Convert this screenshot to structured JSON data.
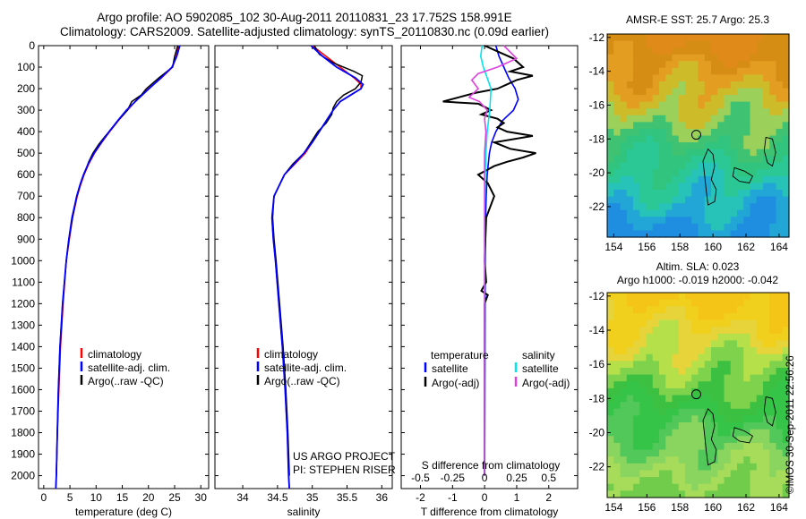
{
  "header": {
    "title_line1": "Argo profile: AO 5902085_102 30-Aug-2011 20110831_23 17.752S 158.991E",
    "title_line2": "Climatology: CARS2009. Satellite-adjusted climatology: synTS_20110830.nc (0.09d earlier)"
  },
  "stamp": "©IMOS 30-Sep-2011 22:56:26",
  "depth_axis": {
    "ticks": [
      0,
      100,
      200,
      300,
      400,
      500,
      600,
      700,
      800,
      900,
      1000,
      1100,
      1200,
      1300,
      1400,
      1500,
      1600,
      1700,
      1800,
      1900,
      2000
    ],
    "range": [
      0,
      2060
    ]
  },
  "colors": {
    "climatology": "#ff0000",
    "satellite": "#0000ff",
    "argo": "#000000",
    "salinity_satellite": "#00e5ee",
    "salinity_argo": "#e040e0"
  },
  "chart_data": [
    {
      "type": "line",
      "xlabel": "temperature (deg C)",
      "xlim": [
        -1,
        31.5
      ],
      "xticks": [
        0,
        5,
        10,
        15,
        20,
        25,
        30
      ],
      "legend": [
        "climatology",
        "satellite-adj. clim.",
        "Argo(..raw -QC)"
      ],
      "legend_placement": "lower-middle",
      "series": [
        {
          "name": "climatology",
          "depth": [
            0,
            50,
            100,
            150,
            200,
            250,
            300,
            350,
            400,
            450,
            500,
            550,
            600,
            650,
            700,
            800,
            900,
            1000,
            1200,
            1400,
            1600,
            1800,
            2000,
            2060
          ],
          "values": [
            25.8,
            25.3,
            24.6,
            22.5,
            20.0,
            17.8,
            16.0,
            14.2,
            12.6,
            11.1,
            9.7,
            8.6,
            7.7,
            7.0,
            6.4,
            5.5,
            4.9,
            4.3,
            3.7,
            3.2,
            2.9,
            2.6,
            2.4,
            2.3
          ]
        },
        {
          "name": "satellite-adj. clim.",
          "depth": [
            0,
            50,
            100,
            150,
            200,
            250,
            300,
            350,
            400,
            450,
            500,
            550,
            600,
            650,
            700,
            800,
            900,
            1000,
            1200,
            1400,
            1600,
            1800,
            2000,
            2060
          ],
          "values": [
            26.0,
            25.4,
            24.5,
            22.4,
            20.1,
            17.9,
            15.8,
            14.1,
            12.5,
            11.0,
            9.6,
            8.5,
            7.6,
            6.9,
            6.3,
            5.4,
            4.8,
            4.3,
            3.6,
            3.1,
            2.8,
            2.6,
            2.4,
            2.3
          ]
        },
        {
          "name": "Argo(..raw -QC)",
          "depth": [
            0,
            50,
            100,
            150,
            200,
            230,
            260,
            280,
            300,
            340,
            380,
            420,
            460,
            500,
            540,
            580,
            620,
            660,
            700,
            800,
            900,
            1000,
            1200,
            1400,
            1600,
            1800,
            2000
          ],
          "values": [
            25.6,
            25.0,
            24.6,
            22.0,
            19.6,
            18.6,
            16.8,
            16.4,
            16.0,
            14.5,
            13.2,
            11.8,
            10.5,
            9.4,
            8.6,
            8.0,
            7.3,
            6.8,
            6.3,
            5.5,
            4.8,
            4.3,
            3.6,
            3.1,
            2.8,
            2.6,
            2.4
          ]
        }
      ]
    },
    {
      "type": "line",
      "xlabel": "salinity",
      "xlim": [
        33.6,
        36.15
      ],
      "xticks": [
        34,
        34.5,
        35,
        35.5,
        36
      ],
      "xtick_labels": [
        "34",
        "34.5",
        "35",
        "35.5",
        "36"
      ],
      "legend": [
        "climatology",
        "satellite-adj. clim.",
        "Argo(..raw -QC)"
      ],
      "legend_placement": "lower-middle",
      "annotation_line1": "US ARGO PROJECT",
      "annotation_line2": "PI: STEPHEN RISER",
      "series": [
        {
          "name": "climatology",
          "depth": [
            0,
            50,
            100,
            150,
            180,
            200,
            230,
            260,
            300,
            350,
            400,
            450,
            500,
            550,
            600,
            700,
            800,
            900,
            1000,
            1200,
            1400,
            1600,
            1800,
            2000,
            2060
          ],
          "values": [
            35.0,
            35.2,
            35.4,
            35.6,
            35.7,
            35.7,
            35.55,
            35.4,
            35.3,
            35.2,
            35.1,
            35.0,
            34.9,
            34.75,
            34.6,
            34.45,
            34.42,
            34.44,
            34.47,
            34.52,
            34.57,
            34.61,
            34.64,
            34.66,
            34.67
          ]
        },
        {
          "name": "satellite-adj. clim.",
          "depth": [
            0,
            50,
            100,
            150,
            180,
            200,
            230,
            260,
            300,
            350,
            400,
            450,
            500,
            550,
            600,
            700,
            800,
            900,
            1000,
            1200,
            1400,
            1600,
            1800,
            2000,
            2060
          ],
          "values": [
            34.98,
            35.15,
            35.35,
            35.62,
            35.73,
            35.7,
            35.55,
            35.4,
            35.3,
            35.2,
            35.1,
            35.0,
            34.88,
            34.74,
            34.6,
            34.45,
            34.42,
            34.44,
            34.47,
            34.52,
            34.57,
            34.61,
            34.64,
            34.66,
            34.67
          ]
        },
        {
          "name": "Argo(..raw -QC)",
          "depth": [
            0,
            40,
            80,
            120,
            140,
            170,
            200,
            230,
            260,
            290,
            320,
            360,
            400,
            450,
            500,
            550,
            600,
            700,
            800,
            900,
            1000,
            1200,
            1400,
            1600,
            1800,
            2000
          ],
          "values": [
            35.03,
            35.1,
            35.3,
            35.6,
            35.72,
            35.7,
            35.62,
            35.45,
            35.35,
            35.3,
            35.28,
            35.2,
            35.08,
            34.98,
            34.88,
            34.72,
            34.6,
            34.45,
            34.43,
            34.45,
            34.48,
            34.53,
            34.58,
            34.62,
            34.65,
            34.67
          ]
        }
      ]
    },
    {
      "type": "line",
      "xlabel": "T difference from climatology",
      "xlabel_top": "S difference from climatology",
      "xlim": [
        -2.6,
        2.9
      ],
      "xticks": [
        -2,
        -1,
        0,
        1,
        2
      ],
      "s_xticks": [
        -0.5,
        -0.25,
        0,
        0.25,
        0.5
      ],
      "s_tick_labels": [
        "-0.5",
        "-0.25",
        "0",
        "0.25",
        "0.5"
      ],
      "legend_temperature_heading": "temperature",
      "legend_salinity_heading": "salinity",
      "legend": [
        "satellite",
        "Argo(-adj)",
        "satellite",
        "Argo(-adj)"
      ],
      "legend_placement": "lower-middle",
      "series": [
        {
          "name": "satellite",
          "group": "temperature",
          "depth": [
            0,
            50,
            100,
            150,
            200,
            250,
            300,
            350,
            400,
            450,
            500,
            600,
            700,
            800,
            1000,
            1500,
            2000
          ],
          "values": [
            0.35,
            0.45,
            0.6,
            0.75,
            0.95,
            1.05,
            0.9,
            0.55,
            0.35,
            0.22,
            0.15,
            0.08,
            0.05,
            0.03,
            0.02,
            0.01,
            0.0
          ]
        },
        {
          "name": "Argo(-adj)",
          "group": "temperature",
          "depth": [
            0,
            60,
            100,
            120,
            140,
            160,
            180,
            200,
            220,
            240,
            260,
            270,
            300,
            320,
            340,
            360,
            380,
            400,
            420,
            450,
            480,
            500,
            520,
            540,
            560,
            600,
            640,
            700,
            800,
            1000,
            1100,
            1140,
            1160,
            1200,
            1500,
            2000
          ],
          "values": [
            0.0,
            0.9,
            1.2,
            0.8,
            1.5,
            1.0,
            0.7,
            0.4,
            -0.3,
            -0.8,
            -1.3,
            -0.2,
            0.2,
            -0.1,
            0.4,
            0.6,
            0.4,
            0.7,
            1.5,
            0.3,
            0.8,
            1.6,
            1.2,
            0.7,
            0.3,
            -0.2,
            0.1,
            0.3,
            0.05,
            0.0,
            0.05,
            -0.1,
            0.1,
            0.0,
            0.0,
            0.0
          ]
        },
        {
          "name": "satellite",
          "group": "salinity",
          "depth": [
            0,
            50,
            100,
            200,
            300,
            400,
            500,
            600,
            800,
            1000,
            1500,
            2000
          ],
          "values": [
            -0.02,
            -0.03,
            -0.01,
            0.05,
            0.04,
            0.02,
            0.01,
            0.005,
            0.0,
            0.0,
            0.0,
            0.0
          ]
        },
        {
          "name": "Argo(-adj)",
          "group": "salinity",
          "depth": [
            0,
            60,
            100,
            130,
            160,
            200,
            240,
            260,
            280,
            300,
            340,
            400,
            500,
            600,
            800,
            1000,
            1500,
            2000
          ],
          "values": [
            0.15,
            0.25,
            0.1,
            -0.05,
            -0.1,
            -0.05,
            -0.12,
            -0.04,
            -0.01,
            0.02,
            0.0,
            0.01,
            0.0,
            0.0,
            0.0,
            0.0,
            0.0,
            0.0
          ]
        }
      ]
    },
    {
      "type": "heatmap",
      "title": "AMSR-E SST: 25.7 Argo: 25.3",
      "xticks": [
        154,
        156,
        158,
        160,
        162,
        164
      ],
      "yticks": [
        -12,
        -14,
        -16,
        -18,
        -20,
        -22
      ],
      "xlim": [
        153.6,
        164.6
      ],
      "ylim": [
        -23.8,
        -11.8
      ],
      "profile_marker": {
        "lon": 158.991,
        "lat": -17.752
      },
      "rows_north_to_south_colors": [
        "#e08a1a",
        "#d58d14",
        "#e39e22",
        "#cdbb2a",
        "#9bd05a",
        "#3fc272",
        "#30c47e",
        "#2bc895",
        "#27c3b8",
        "#21a6d6",
        "#1f8ee0"
      ]
    },
    {
      "type": "heatmap",
      "title": "Altim. SLA: 0.023",
      "subtitle": "Argo h1000: -0.019 h2000: -0.042",
      "xticks": [
        154,
        156,
        158,
        160,
        162,
        164
      ],
      "yticks": [
        -12,
        -14,
        -16,
        -18,
        -20,
        -22
      ],
      "xlim": [
        153.6,
        164.6
      ],
      "ylim": [
        -23.8,
        -11.8
      ],
      "profile_marker": {
        "lon": 158.991,
        "lat": -17.752
      },
      "rows_north_to_south_colors": [
        "#f4c416",
        "#f0d01c",
        "#e6d43a",
        "#b6e04a",
        "#7fd24c",
        "#3cc042",
        "#36c448",
        "#52c85a",
        "#8ad460",
        "#a6dc5a",
        "#72cc4c"
      ]
    }
  ]
}
